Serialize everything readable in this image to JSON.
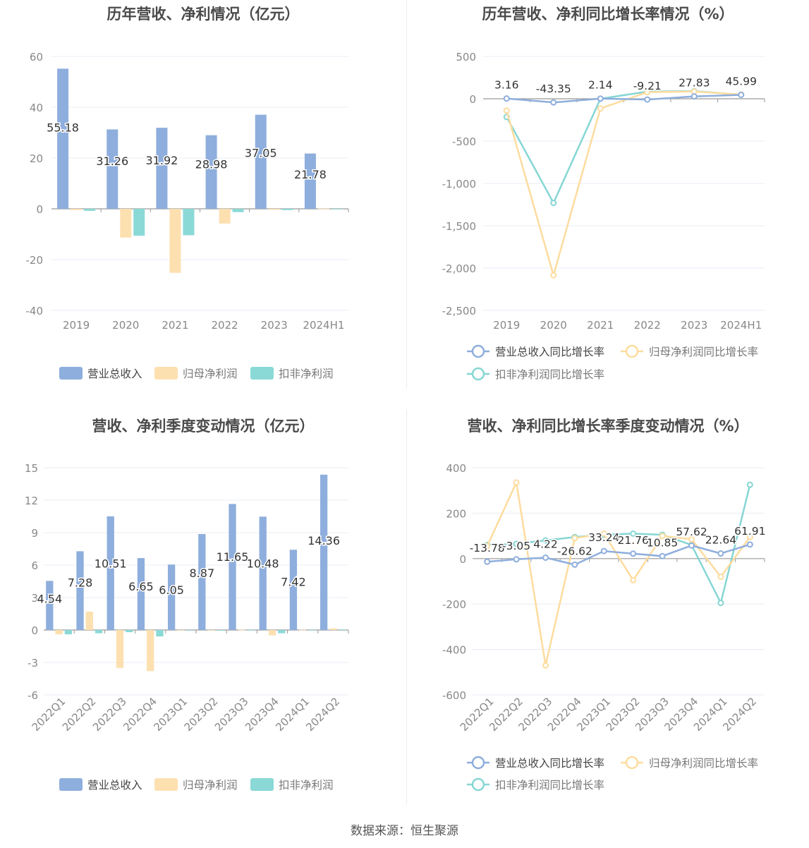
{
  "colors": {
    "revenue": "#8eaedd",
    "net_profit": "#fde0b0",
    "deducted_profit": "#8ad9d7",
    "revenue_line": "#8eaedd",
    "net_line": "#fddc9f",
    "deducted_line": "#86d6d4",
    "axis_text": "#888888",
    "grid": "#e8ecf4",
    "axis_line": "#999999",
    "label": "#333333"
  },
  "source": "数据来源：恒生聚源",
  "chart_data": [
    {
      "id": "annual-bar",
      "type": "bar",
      "title": "历年营收、净利情况（亿元）",
      "categories": [
        "2019",
        "2020",
        "2021",
        "2022",
        "2023",
        "2024H1"
      ],
      "ylim": [
        -40,
        60
      ],
      "yticks": [
        60,
        40,
        20,
        0,
        -20,
        -40
      ],
      "series": [
        {
          "name": "营业总收入",
          "values": [
            55.18,
            31.26,
            31.92,
            28.98,
            37.05,
            21.78
          ],
          "show_labels": true
        },
        {
          "name": "归母净利润",
          "values": [
            -0.5,
            -11.3,
            -25.2,
            -5.8,
            -0.4,
            0.1
          ],
          "show_labels": false
        },
        {
          "name": "扣非净利润",
          "values": [
            -0.8,
            -10.6,
            -10.4,
            -1.3,
            -0.5,
            -0.1
          ],
          "show_labels": false
        }
      ],
      "legend_position": "bottom",
      "grid": true
    },
    {
      "id": "annual-line",
      "type": "line",
      "title": "历年营收、净利同比增长率情况（%）",
      "categories": [
        "2019",
        "2020",
        "2021",
        "2022",
        "2023",
        "2024H1"
      ],
      "ylim": [
        -2500,
        500
      ],
      "yticks": [
        500,
        0,
        -500,
        -1000,
        -1500,
        -2000,
        -2500
      ],
      "ytick_labels": [
        "500",
        "0",
        "-500",
        "-1,000",
        "-1,500",
        "-2,000",
        "-2,500"
      ],
      "series": [
        {
          "name": "营业总收入同比增长率",
          "values": [
            3.16,
            -43.35,
            2.14,
            -9.21,
            27.83,
            45.99
          ],
          "show_labels": true
        },
        {
          "name": "归母净利润同比增长率",
          "values": [
            -140,
            -2085,
            -115,
            78,
            85,
            50
          ],
          "show_labels": false
        },
        {
          "name": "扣非净利润同比增长率",
          "values": [
            -215,
            -1230,
            0,
            85,
            90,
            48
          ],
          "show_labels": false
        }
      ],
      "legend_position": "bottom",
      "grid": true
    },
    {
      "id": "quarter-bar",
      "type": "bar",
      "title": "营收、净利季度变动情况（亿元）",
      "categories": [
        "2022Q1",
        "2022Q2",
        "2022Q3",
        "2022Q4",
        "2023Q1",
        "2023Q2",
        "2023Q3",
        "2023Q4",
        "2024Q1",
        "2024Q2"
      ],
      "ylim": [
        -6,
        15
      ],
      "yticks": [
        15,
        12,
        9,
        6,
        3,
        0,
        -3,
        -6
      ],
      "series": [
        {
          "name": "营业总收入",
          "values": [
            4.54,
            7.28,
            10.51,
            6.65,
            6.05,
            8.87,
            11.65,
            10.48,
            7.42,
            14.36
          ],
          "show_labels": true
        },
        {
          "name": "归母净利润",
          "values": [
            -0.4,
            1.7,
            -3.5,
            -3.8,
            -0.05,
            -0.05,
            0.02,
            -0.5,
            0.02,
            0.15
          ],
          "show_labels": false
        },
        {
          "name": "扣非净利润",
          "values": [
            -0.4,
            -0.3,
            -0.2,
            -0.6,
            -0.05,
            -0.05,
            0.01,
            -0.3,
            0.01,
            0.05
          ],
          "show_labels": false
        }
      ],
      "legend_position": "bottom",
      "grid": true
    },
    {
      "id": "quarter-line",
      "type": "line",
      "title": "营收、净利同比增长率季度变动情况（%）",
      "categories": [
        "2022Q1",
        "2022Q2",
        "2022Q3",
        "2022Q4",
        "2023Q1",
        "2023Q2",
        "2023Q3",
        "2023Q4",
        "2024Q1",
        "2024Q2"
      ],
      "ylim": [
        -600,
        400
      ],
      "yticks": [
        400,
        200,
        0,
        -200,
        -400,
        -600
      ],
      "series": [
        {
          "name": "营业总收入同比增长率",
          "values": [
            -13.78,
            -3.05,
            4.22,
            -26.62,
            33.24,
            21.76,
            10.85,
            57.62,
            22.64,
            61.91
          ],
          "show_labels": true
        },
        {
          "name": "归母净利润同比增长率",
          "values": [
            55,
            335,
            -470,
            90,
            110,
            -95,
            100,
            85,
            -80,
            95
          ],
          "show_labels": false
        },
        {
          "name": "扣非净利润同比增长率",
          "values": [
            60,
            65,
            80,
            95,
            105,
            110,
            105,
            60,
            -195,
            325
          ],
          "show_labels": false
        }
      ],
      "legend_position": "bottom",
      "grid": true
    }
  ]
}
